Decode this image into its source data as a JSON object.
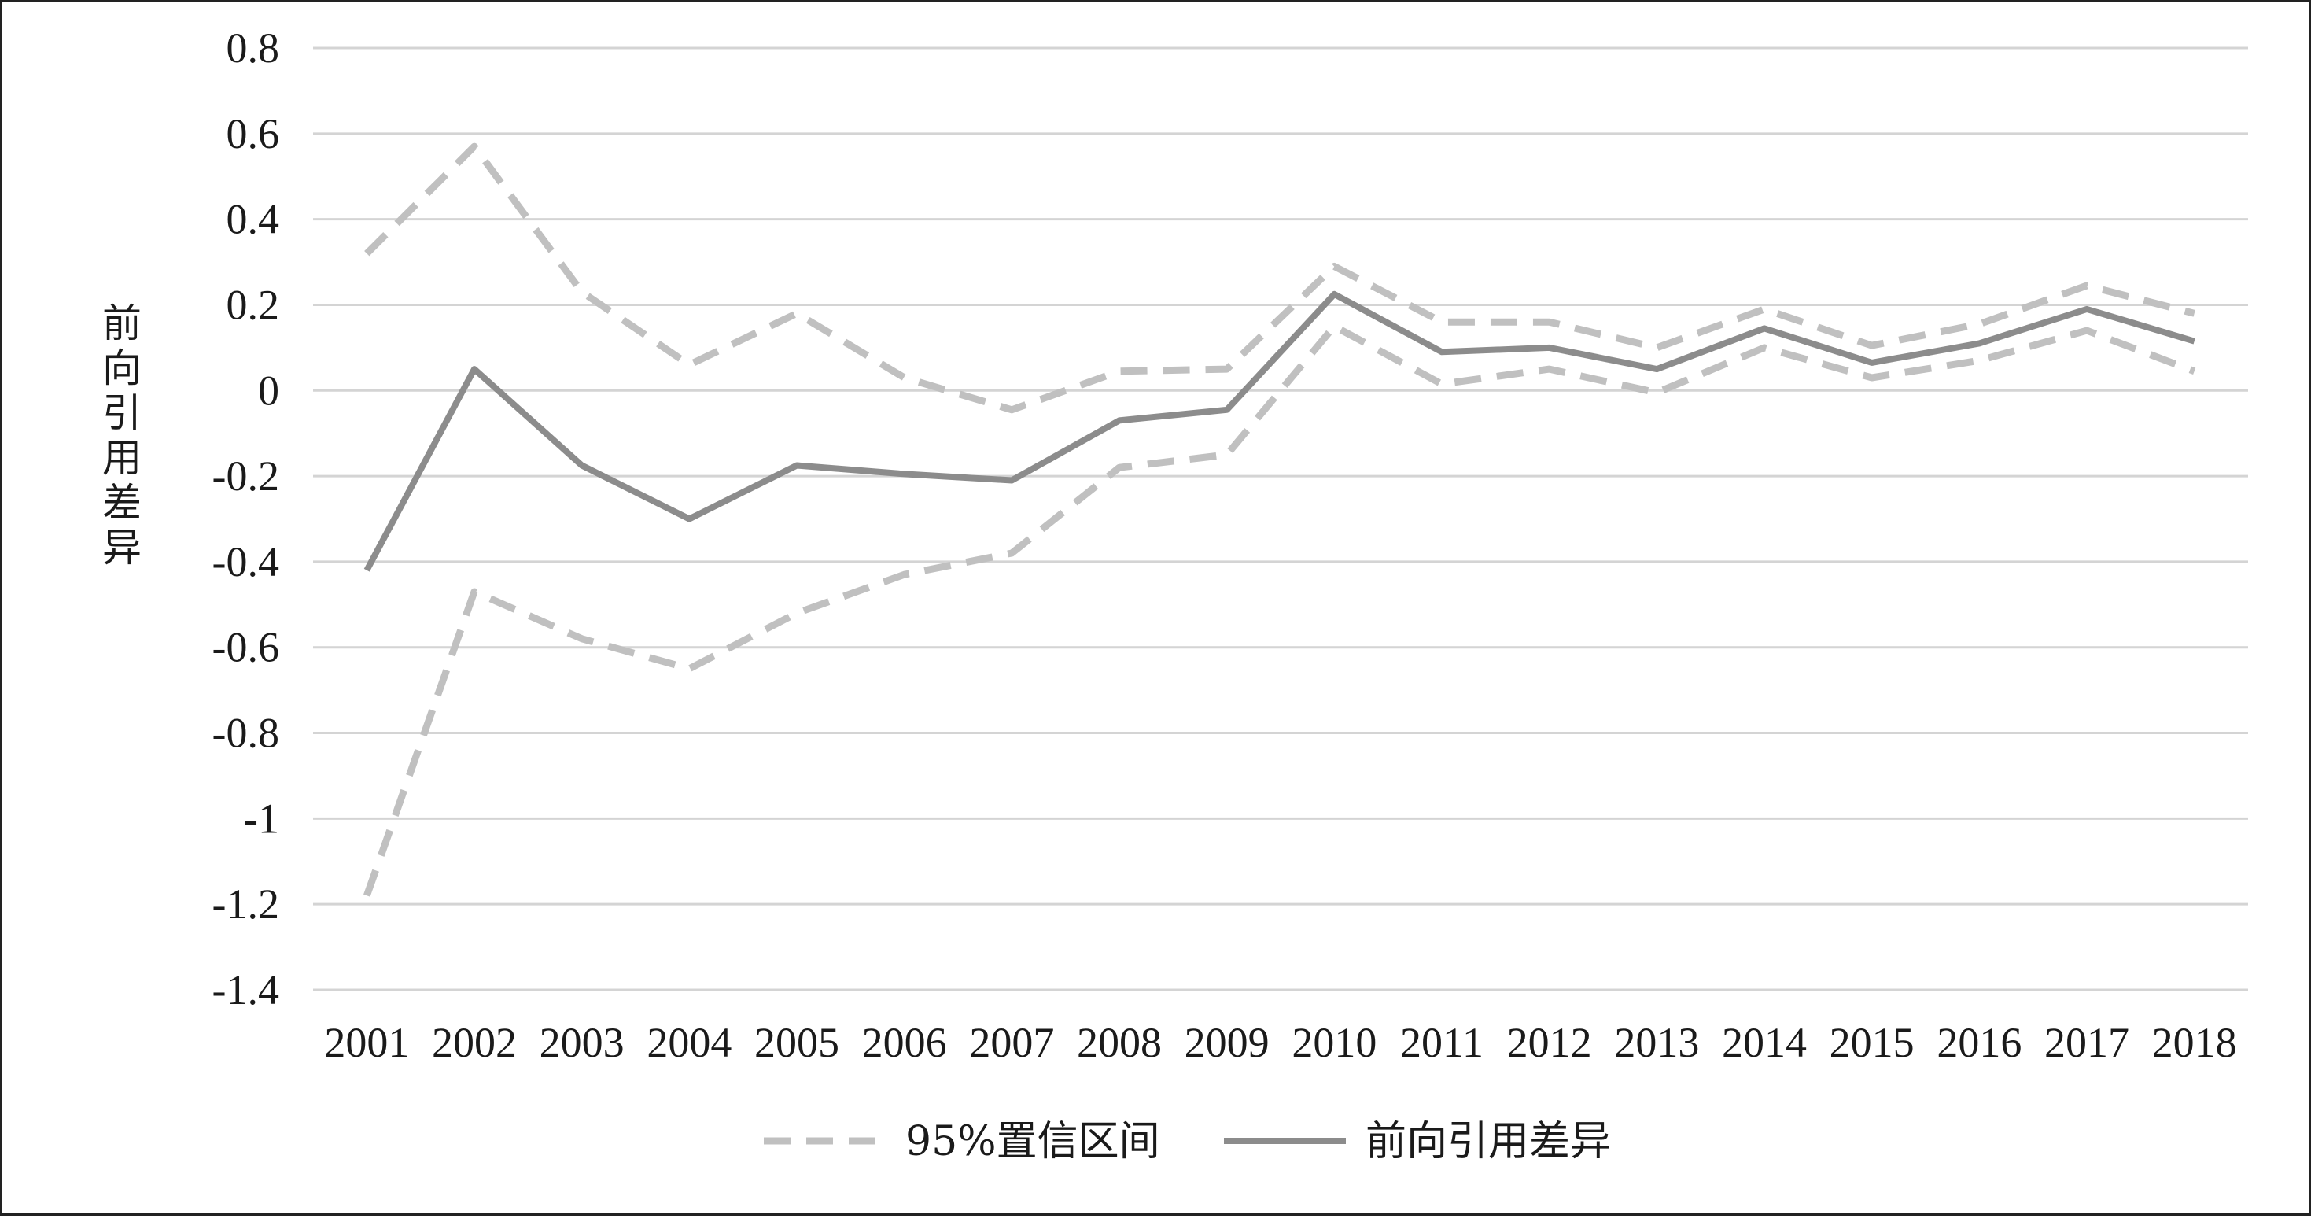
{
  "chart_data": {
    "type": "line",
    "title": "",
    "xlabel": "",
    "ylabel": "前向引用差异",
    "x": [
      "2001",
      "2002",
      "2003",
      "2004",
      "2005",
      "2006",
      "2007",
      "2008",
      "2009",
      "2010",
      "2011",
      "2012",
      "2013",
      "2014",
      "2015",
      "2016",
      "2017",
      "2018"
    ],
    "ylim": [
      -1.4,
      0.8
    ],
    "yticks": [
      "0.8",
      "0.6",
      "0.4",
      "0.2",
      "0",
      "-0.2",
      "-0.4",
      "-0.6",
      "-0.8",
      "-1",
      "-1.2",
      "-1.4"
    ],
    "grid": true,
    "legend_position": "bottom",
    "series": [
      {
        "name": "前向引用差异",
        "style": "solid",
        "color": "#8c8c8c",
        "values": [
          -0.42,
          0.05,
          -0.175,
          -0.3,
          -0.175,
          -0.195,
          -0.21,
          -0.07,
          -0.045,
          0.225,
          0.09,
          0.1,
          0.05,
          0.145,
          0.065,
          0.11,
          0.19,
          0.115
        ]
      },
      {
        "name": "95%置信区间",
        "style": "dashed",
        "color": "#c0c0c0",
        "values": [
          0.32,
          0.57,
          0.23,
          0.06,
          0.18,
          0.03,
          -0.045,
          0.045,
          0.05,
          0.29,
          0.16,
          0.16,
          0.1,
          0.19,
          0.105,
          0.155,
          0.245,
          0.18
        ]
      },
      {
        "name": "95%置信区间",
        "style": "dashed",
        "color": "#c0c0c0",
        "values": [
          -1.18,
          -0.47,
          -0.58,
          -0.65,
          -0.52,
          -0.43,
          -0.38,
          -0.18,
          -0.15,
          0.15,
          0.015,
          0.05,
          -0.005,
          0.1,
          0.03,
          0.07,
          0.14,
          0.045
        ]
      }
    ],
    "legend": [
      {
        "label": "95%置信区间",
        "style": "dashed",
        "color": "#c0c0c0"
      },
      {
        "label": "前向引用差异",
        "style": "solid",
        "color": "#8c8c8c"
      }
    ]
  }
}
